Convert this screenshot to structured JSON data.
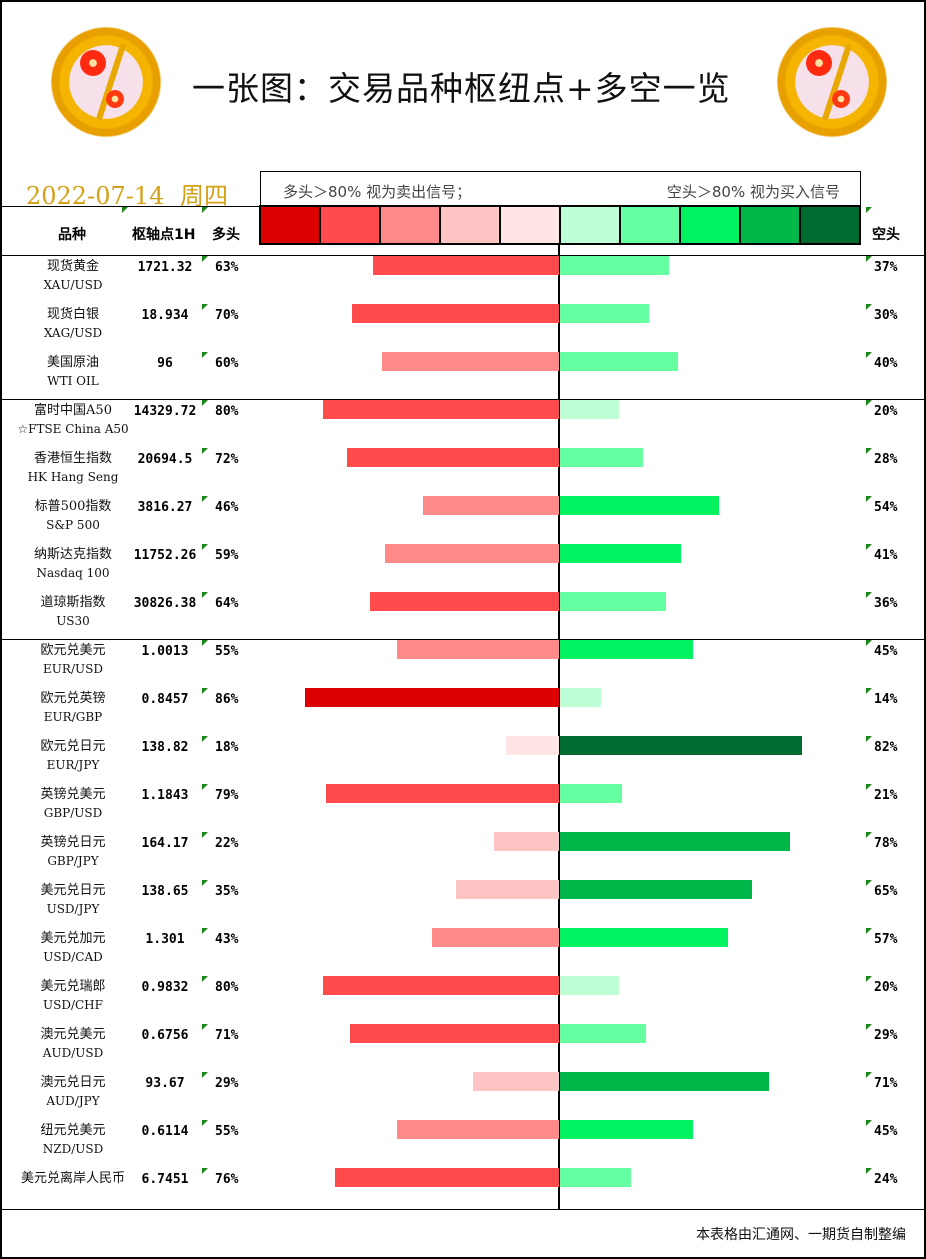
{
  "header": {
    "title": "一张图：交易品种枢纽点+多空一览",
    "date": "2022-07-14",
    "weekday": "周四",
    "legend_left": "多头＞80% 视为卖出信号；",
    "legend_right": "空头＞80% 视为买入信号",
    "swatch_colors": [
      "#dd0000",
      "#ff4b4b",
      "#ff8888",
      "#ffc4c4",
      "#ffe5e5",
      "#bfffd8",
      "#66ffa1",
      "#00f260",
      "#00b84a",
      "#006b2e"
    ]
  },
  "columns": {
    "instrument": "品种",
    "pivot": "枢轴点1H",
    "bull": "多头",
    "bear": "空头"
  },
  "footer": "本表格由汇通网、一期货自制整编",
  "chart_data": {
    "type": "bar",
    "title": "一张图：交易品种枢纽点+多空一览",
    "subtitle": "2022-07-14 周四",
    "orientation": "horizontal-diverging",
    "categories": [
      "现货黄金 XAU/USD",
      "现货白银 XAG/USD",
      "美国原油 WTI OIL",
      "富时中国A50 ☆FTSE China A50",
      "香港恒生指数 HK Hang Seng",
      "标普500指数 S&P 500",
      "纳斯达克指数 Nasdaq 100",
      "道琼斯指数 US30",
      "欧元兑美元 EUR/USD",
      "欧元兑英镑 EUR/GBP",
      "欧元兑日元 EUR/JPY",
      "英镑兑美元 GBP/USD",
      "英镑兑日元 GBP/JPY",
      "美元兑日元 USD/JPY",
      "美元兑加元 USD/CAD",
      "美元兑瑞郎 USD/CHF",
      "澳元兑美元 AUD/USD",
      "澳元兑日元 AUD/JPY",
      "纽元兑美元 NZD/USD",
      "美元兑离岸人民币"
    ],
    "series": [
      {
        "name": "多头",
        "values": [
          63,
          70,
          60,
          80,
          72,
          46,
          59,
          64,
          55,
          86,
          18,
          79,
          22,
          35,
          43,
          80,
          71,
          29,
          55,
          76
        ]
      },
      {
        "name": "空头",
        "values": [
          37,
          30,
          40,
          20,
          28,
          54,
          41,
          36,
          45,
          14,
          82,
          21,
          78,
          65,
          57,
          20,
          29,
          71,
          45,
          24
        ]
      }
    ],
    "pivots": [
      "1721.32",
      "18.934",
      "96",
      "14329.72",
      "20694.5",
      "3816.27",
      "11752.26",
      "30826.38",
      "1.0013",
      "0.8457",
      "138.82",
      "1.1843",
      "164.17",
      "138.65",
      "1.301",
      "0.9832",
      "0.6756",
      "93.67",
      "0.6114",
      "6.7451"
    ],
    "xlim": [
      0,
      100
    ],
    "legend_position": "top"
  },
  "rows": [
    {
      "cn": "现货黄金",
      "en": "XAU/USD",
      "pivot": "1721.32",
      "bull": 63,
      "bull_label": "63%",
      "bear": 37,
      "bear_label": "37%",
      "bull_color": "#ff4b4b",
      "bear_color": "#66ffa1"
    },
    {
      "cn": "现货白银",
      "en": "XAG/USD",
      "pivot": "18.934",
      "bull": 70,
      "bull_label": "70%",
      "bear": 30,
      "bear_label": "30%",
      "bull_color": "#ff4b4b",
      "bear_color": "#66ffa1"
    },
    {
      "cn": "美国原油",
      "en": "WTI OIL",
      "pivot": "96",
      "bull": 60,
      "bull_label": "60%",
      "bear": 40,
      "bear_label": "40%",
      "bull_color": "#ff8888",
      "bear_color": "#66ffa1"
    },
    {
      "cn": "富时中国A50",
      "en": "☆FTSE China A50",
      "pivot": "14329.72",
      "bull": 80,
      "bull_label": "80%",
      "bear": 20,
      "bear_label": "20%",
      "bull_color": "#ff4b4b",
      "bear_color": "#bfffd8"
    },
    {
      "cn": "香港恒生指数",
      "en": "HK Hang Seng",
      "pivot": "20694.5",
      "bull": 72,
      "bull_label": "72%",
      "bear": 28,
      "bear_label": "28%",
      "bull_color": "#ff4b4b",
      "bear_color": "#66ffa1"
    },
    {
      "cn": "标普500指数",
      "en": "S&P 500",
      "pivot": "3816.27",
      "bull": 46,
      "bull_label": "46%",
      "bear": 54,
      "bear_label": "54%",
      "bull_color": "#ff8888",
      "bear_color": "#00f260"
    },
    {
      "cn": "纳斯达克指数",
      "en": "Nasdaq 100",
      "pivot": "11752.26",
      "bull": 59,
      "bull_label": "59%",
      "bear": 41,
      "bear_label": "41%",
      "bull_color": "#ff8888",
      "bear_color": "#00f260"
    },
    {
      "cn": "道琼斯指数",
      "en": "US30",
      "pivot": "30826.38",
      "bull": 64,
      "bull_label": "64%",
      "bear": 36,
      "bear_label": "36%",
      "bull_color": "#ff4b4b",
      "bear_color": "#66ffa1"
    },
    {
      "cn": "欧元兑美元",
      "en": "EUR/USD",
      "pivot": "1.0013",
      "bull": 55,
      "bull_label": "55%",
      "bear": 45,
      "bear_label": "45%",
      "bull_color": "#ff8888",
      "bear_color": "#00f260"
    },
    {
      "cn": "欧元兑英镑",
      "en": "EUR/GBP",
      "pivot": "0.8457",
      "bull": 86,
      "bull_label": "86%",
      "bear": 14,
      "bear_label": "14%",
      "bull_color": "#dd0000",
      "bear_color": "#bfffd8"
    },
    {
      "cn": "欧元兑日元",
      "en": "EUR/JPY",
      "pivot": "138.82",
      "bull": 18,
      "bull_label": "18%",
      "bear": 82,
      "bear_label": "82%",
      "bull_color": "#ffe5e5",
      "bear_color": "#006b2e"
    },
    {
      "cn": "英镑兑美元",
      "en": "GBP/USD",
      "pivot": "1.1843",
      "bull": 79,
      "bull_label": "79%",
      "bear": 21,
      "bear_label": "21%",
      "bull_color": "#ff4b4b",
      "bear_color": "#66ffa1"
    },
    {
      "cn": "英镑兑日元",
      "en": "GBP/JPY",
      "pivot": "164.17",
      "bull": 22,
      "bull_label": "22%",
      "bear": 78,
      "bear_label": "78%",
      "bull_color": "#ffc4c4",
      "bear_color": "#00b84a"
    },
    {
      "cn": "美元兑日元",
      "en": "USD/JPY",
      "pivot": "138.65",
      "bull": 35,
      "bull_label": "35%",
      "bear": 65,
      "bear_label": "65%",
      "bull_color": "#ffc4c4",
      "bear_color": "#00b84a"
    },
    {
      "cn": "美元兑加元",
      "en": "USD/CAD",
      "pivot": "1.301",
      "bull": 43,
      "bull_label": "43%",
      "bear": 57,
      "bear_label": "57%",
      "bull_color": "#ff8888",
      "bear_color": "#00f260"
    },
    {
      "cn": "美元兑瑞郎",
      "en": "USD/CHF",
      "pivot": "0.9832",
      "bull": 80,
      "bull_label": "80%",
      "bear": 20,
      "bear_label": "20%",
      "bull_color": "#ff4b4b",
      "bear_color": "#bfffd8"
    },
    {
      "cn": "澳元兑美元",
      "en": "AUD/USD",
      "pivot": "0.6756",
      "bull": 71,
      "bull_label": "71%",
      "bear": 29,
      "bear_label": "29%",
      "bull_color": "#ff4b4b",
      "bear_color": "#66ffa1"
    },
    {
      "cn": "澳元兑日元",
      "en": "AUD/JPY",
      "pivot": "93.67",
      "bull": 29,
      "bull_label": "29%",
      "bear": 71,
      "bear_label": "71%",
      "bull_color": "#ffc4c4",
      "bear_color": "#00b84a"
    },
    {
      "cn": "纽元兑美元",
      "en": "NZD/USD",
      "pivot": "0.6114",
      "bull": 55,
      "bull_label": "55%",
      "bear": 45,
      "bear_label": "45%",
      "bull_color": "#ff8888",
      "bear_color": "#00f260"
    },
    {
      "cn": "美元兑离岸人民币",
      "en": "",
      "pivot": "6.7451",
      "bull": 76,
      "bull_label": "76%",
      "bear": 24,
      "bear_label": "24%",
      "bull_color": "#ff4b4b",
      "bear_color": "#66ffa1"
    }
  ]
}
